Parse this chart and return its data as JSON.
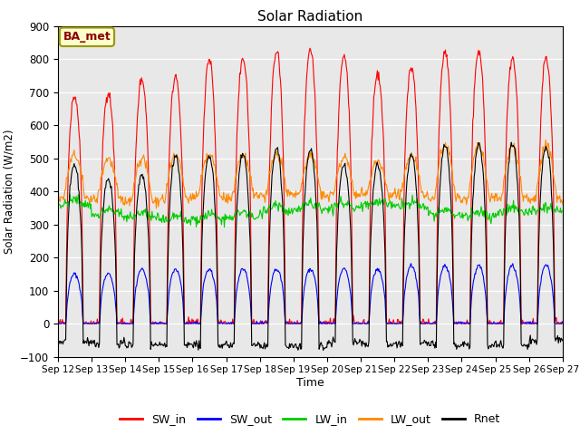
{
  "title": "Solar Radiation",
  "ylabel": "Solar Radiation (W/m2)",
  "xlabel": "Time",
  "ylim": [
    -100,
    900
  ],
  "yticks": [
    -100,
    0,
    100,
    200,
    300,
    400,
    500,
    600,
    700,
    800,
    900
  ],
  "xtick_labels": [
    "Sep 12",
    "Sep 13",
    "Sep 14",
    "Sep 15",
    "Sep 16",
    "Sep 17",
    "Sep 18",
    "Sep 19",
    "Sep 20",
    "Sep 21",
    "Sep 22",
    "Sep 23",
    "Sep 24",
    "Sep 25",
    "Sep 26",
    "Sep 27"
  ],
  "site_label": "BA_met",
  "colors": {
    "SW_in": "#ff0000",
    "SW_out": "#0000ff",
    "LW_in": "#00cc00",
    "LW_out": "#ff8800",
    "Rnet": "#000000"
  },
  "background_color": "#e8e8e8",
  "n_days": 15,
  "SW_in_peaks": [
    690,
    700,
    740,
    750,
    800,
    800,
    825,
    825,
    810,
    755,
    775,
    825,
    825,
    805,
    800
  ],
  "SW_out_peaks": [
    150,
    150,
    165,
    165,
    165,
    165,
    165,
    165,
    165,
    165,
    175,
    175,
    175,
    175,
    175
  ],
  "LW_in_base": [
    360,
    330,
    320,
    310,
    315,
    320,
    340,
    350,
    350,
    360,
    355,
    330,
    325,
    335,
    340
  ],
  "LW_in_day_add": [
    15,
    15,
    15,
    15,
    15,
    20,
    20,
    15,
    15,
    10,
    10,
    15,
    15,
    15,
    15
  ],
  "LW_out_base": [
    380,
    375,
    370,
    375,
    385,
    385,
    390,
    390,
    388,
    388,
    390,
    380,
    380,
    378,
    375
  ],
  "LW_out_day": [
    510,
    500,
    500,
    505,
    510,
    510,
    510,
    510,
    505,
    490,
    510,
    540,
    540,
    540,
    540
  ],
  "Rnet_peaks": [
    480,
    440,
    450,
    510,
    510,
    510,
    530,
    525,
    480,
    480,
    510,
    540,
    540,
    545,
    535
  ],
  "Rnet_night": [
    -55,
    -60,
    -65,
    -65,
    -65,
    -65,
    -70,
    -70,
    -55,
    -60,
    -60,
    -65,
    -65,
    -65,
    -50
  ]
}
